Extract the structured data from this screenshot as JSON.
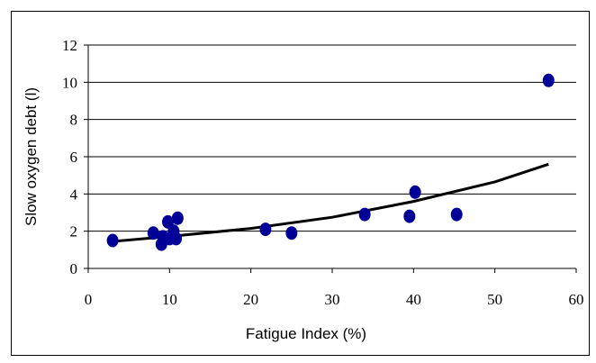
{
  "chart_data": {
    "type": "scatter",
    "xlabel": "Fatigue Index (%)",
    "ylabel": "Slow oxygen debt (l)",
    "xlim": [
      0,
      60
    ],
    "ylim": [
      0,
      12
    ],
    "x_ticks": [
      0,
      10,
      20,
      30,
      40,
      50,
      60
    ],
    "y_ticks": [
      0,
      2,
      4,
      6,
      8,
      10,
      12
    ],
    "grid": "horizontal",
    "legend": "none",
    "point_color": "#000099",
    "trend_color": "#000000",
    "series": [
      {
        "points": [
          {
            "x": 3.0,
            "y": 1.5
          },
          {
            "x": 8.0,
            "y": 1.9
          },
          {
            "x": 9.0,
            "y": 1.3
          },
          {
            "x": 9.2,
            "y": 1.7
          },
          {
            "x": 9.8,
            "y": 2.5
          },
          {
            "x": 10.0,
            "y": 1.6
          },
          {
            "x": 10.5,
            "y": 2.0
          },
          {
            "x": 10.8,
            "y": 1.6
          },
          {
            "x": 11.0,
            "y": 2.7
          },
          {
            "x": 21.8,
            "y": 2.1
          },
          {
            "x": 25.0,
            "y": 1.9
          },
          {
            "x": 34.0,
            "y": 2.9
          },
          {
            "x": 39.5,
            "y": 2.8
          },
          {
            "x": 40.2,
            "y": 4.1
          },
          {
            "x": 45.3,
            "y": 2.9
          },
          {
            "x": 56.6,
            "y": 10.1
          }
        ]
      }
    ],
    "trendline": [
      {
        "x": 3,
        "y": 1.45
      },
      {
        "x": 10,
        "y": 1.72
      },
      {
        "x": 20,
        "y": 2.15
      },
      {
        "x": 30,
        "y": 2.75
      },
      {
        "x": 40,
        "y": 3.6
      },
      {
        "x": 50,
        "y": 4.65
      },
      {
        "x": 56.6,
        "y": 5.6
      }
    ]
  }
}
